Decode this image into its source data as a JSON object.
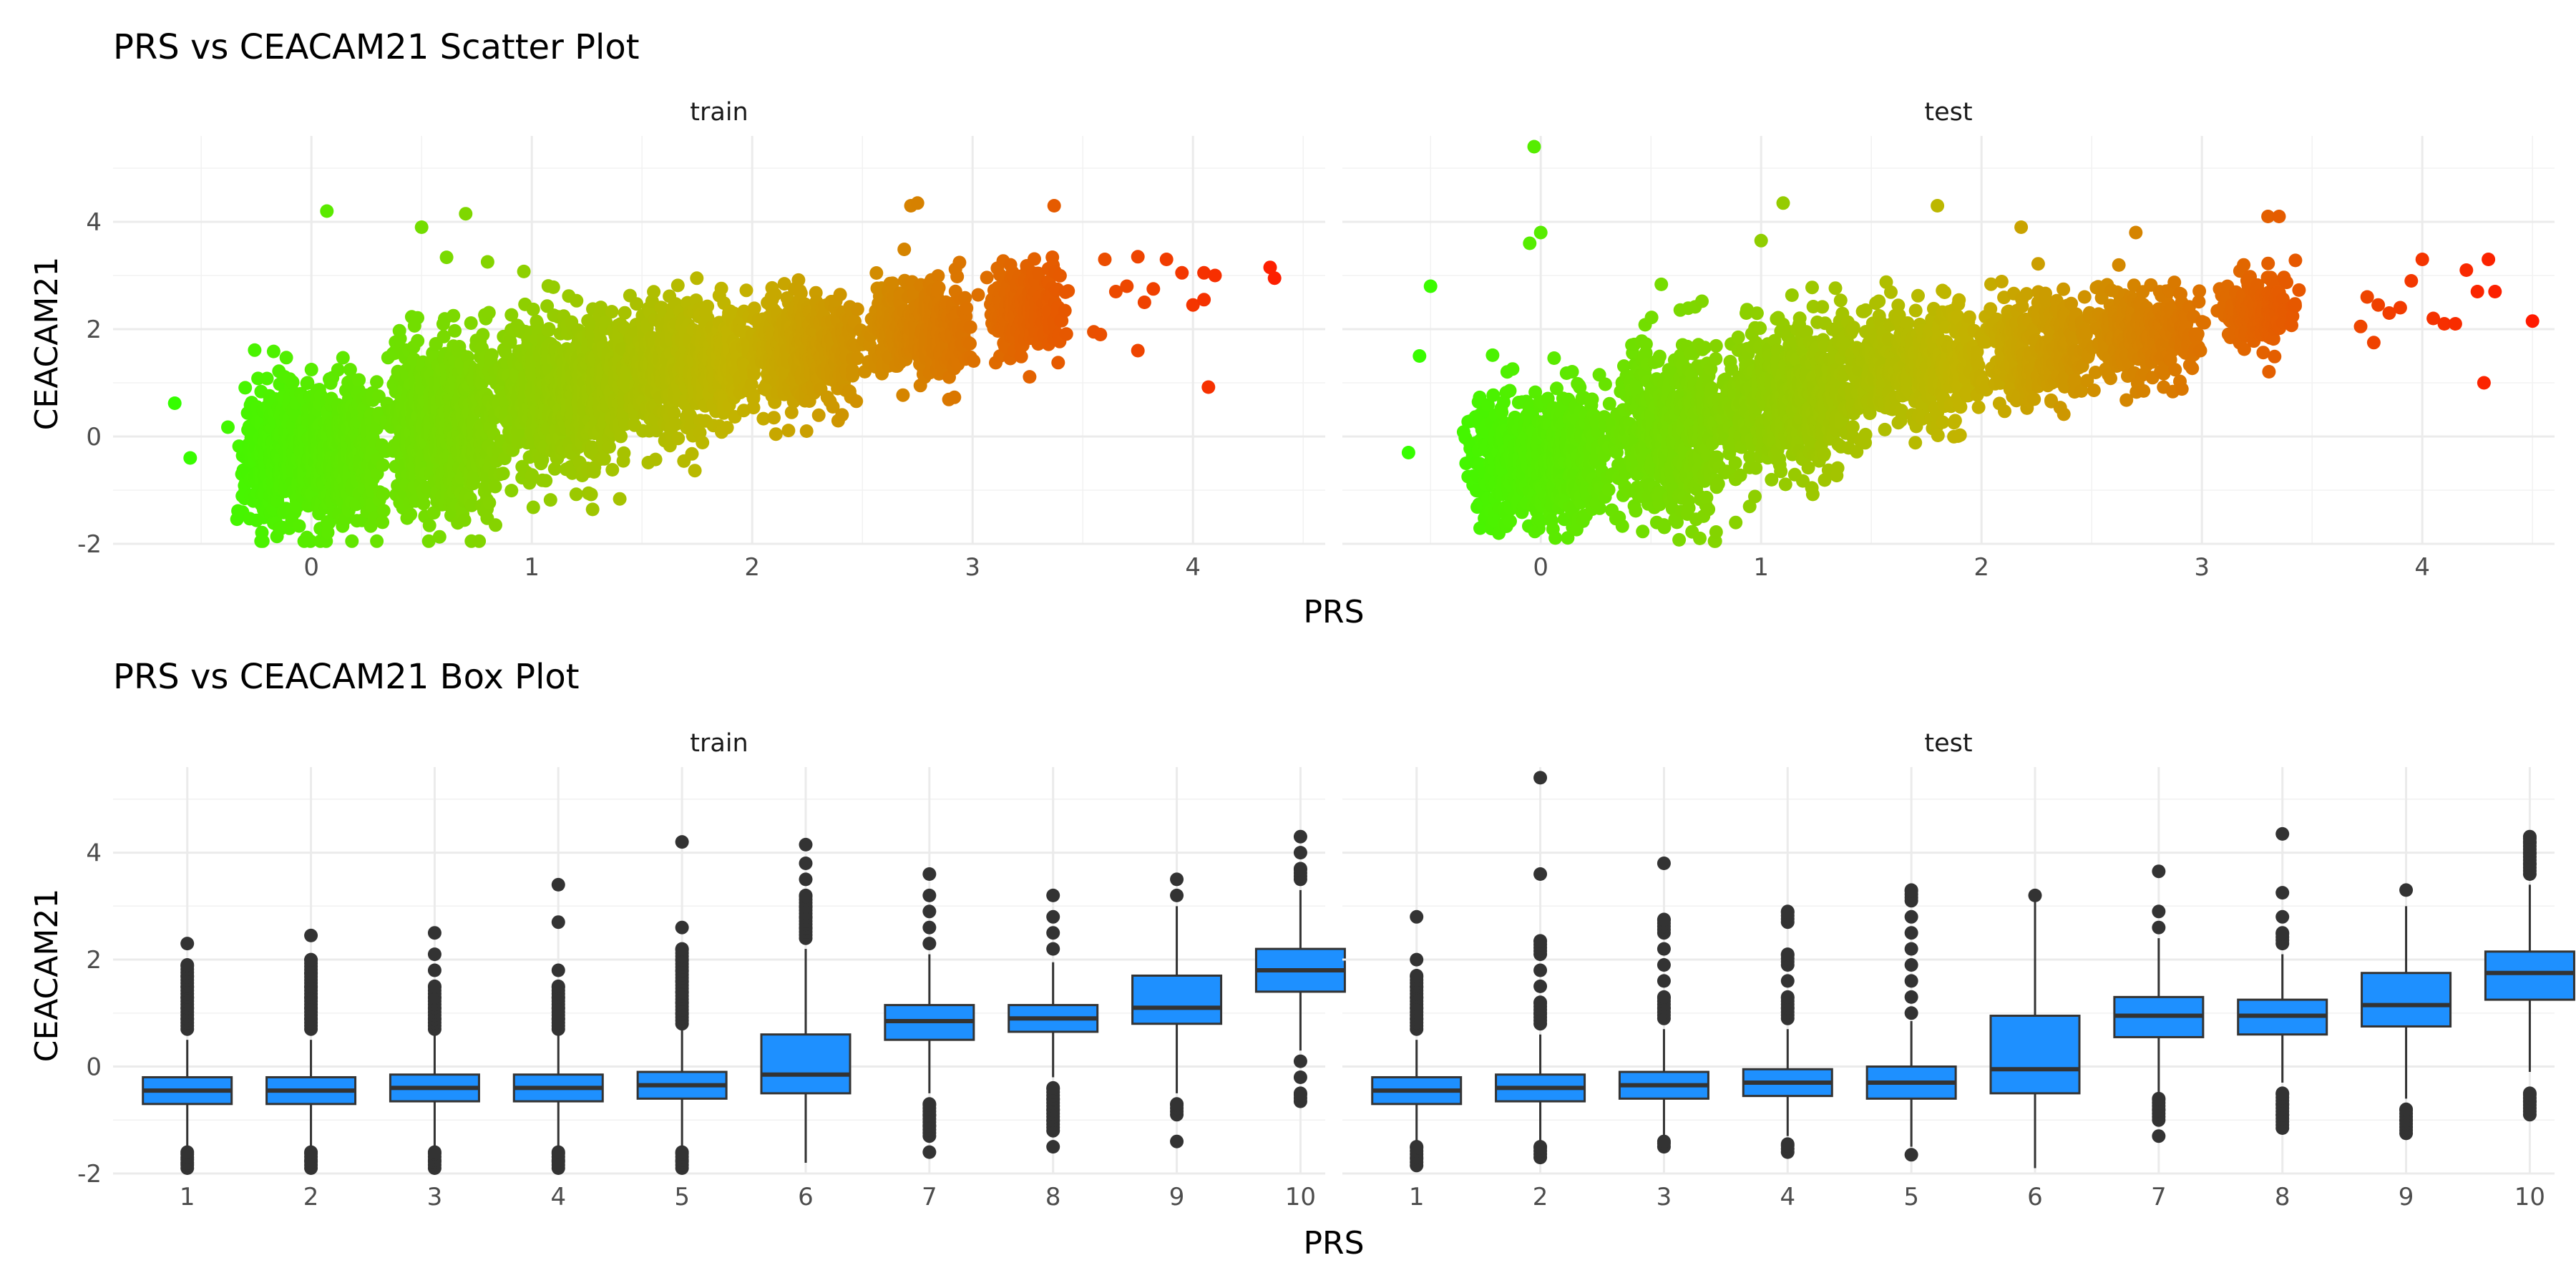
{
  "figure": {
    "scatter_title": "PRS vs CEACAM21 Scatter Plot",
    "box_title": "PRS vs CEACAM21 Box Plot",
    "scatter_xlabel": "PRS",
    "box_xlabel": "PRS",
    "ylabel": "CEACAM21"
  },
  "colors": {
    "low": "#33ff00",
    "mid": "#c2b400",
    "high": "#ff1a00",
    "box_fill": "#1e90ff",
    "box_line": "#333333",
    "outlier": "#333333"
  },
  "chart_data": [
    {
      "type": "scatter",
      "title": "PRS vs CEACAM21 Scatter Plot",
      "xlabel": "PRS",
      "ylabel": "CEACAM21",
      "color_by": "PRS",
      "grid": true,
      "panels": [
        {
          "name": "train",
          "xlim": [
            -0.9,
            4.6
          ],
          "ylim": [
            -2.0,
            5.6
          ],
          "xticks": [
            0,
            1,
            2,
            3,
            4
          ],
          "yticks": [
            -2,
            0,
            2,
            4
          ],
          "clusters": [
            {
              "x_center": 0.0,
              "x_spread": 0.28,
              "y_mean": -0.35,
              "y_sd": 0.65,
              "n": 900
            },
            {
              "x_center": 0.6,
              "x_spread": 0.22,
              "y_mean": 0.2,
              "y_sd": 0.8,
              "n": 800
            },
            {
              "x_center": 1.15,
              "x_spread": 0.25,
              "y_mean": 0.8,
              "y_sd": 0.7,
              "n": 800
            },
            {
              "x_center": 1.7,
              "x_spread": 0.25,
              "y_mean": 1.35,
              "y_sd": 0.55,
              "n": 650
            },
            {
              "x_center": 2.25,
              "x_spread": 0.2,
              "y_mean": 1.65,
              "y_sd": 0.5,
              "n": 500
            },
            {
              "x_center": 2.75,
              "x_spread": 0.2,
              "y_mean": 2.0,
              "y_sd": 0.45,
              "n": 420
            },
            {
              "x_center": 3.25,
              "x_spread": 0.12,
              "y_mean": 2.35,
              "y_sd": 0.35,
              "n": 300
            }
          ],
          "extra_points": [
            [
              0.07,
              4.2
            ],
            [
              0.7,
              4.15
            ],
            [
              0.5,
              3.9
            ],
            [
              2.75,
              4.35
            ],
            [
              2.72,
              4.3
            ],
            [
              3.37,
              4.3
            ],
            [
              3.6,
              3.3
            ],
            [
              3.75,
              3.35
            ],
            [
              3.88,
              3.3
            ],
            [
              3.95,
              3.05
            ],
            [
              4.05,
              3.05
            ],
            [
              4.1,
              3.0
            ],
            [
              3.7,
              2.8
            ],
            [
              3.65,
              2.7
            ],
            [
              3.82,
              2.75
            ],
            [
              3.78,
              2.5
            ],
            [
              4.0,
              2.45
            ],
            [
              4.05,
              2.55
            ],
            [
              3.55,
              1.95
            ],
            [
              3.58,
              1.9
            ],
            [
              3.75,
              1.6
            ],
            [
              4.07,
              0.92
            ],
            [
              4.35,
              3.15
            ],
            [
              4.37,
              2.95
            ],
            [
              -0.62,
              0.62
            ],
            [
              -0.55,
              -0.4
            ]
          ]
        },
        {
          "name": "test",
          "xlim": [
            -0.9,
            4.6
          ],
          "ylim": [
            -2.0,
            5.6
          ],
          "xticks": [
            0,
            1,
            2,
            3,
            4
          ],
          "yticks": [
            -2,
            0,
            2,
            4
          ],
          "clusters": [
            {
              "x_center": 0.0,
              "x_spread": 0.28,
              "y_mean": -0.4,
              "y_sd": 0.6,
              "n": 650
            },
            {
              "x_center": 0.6,
              "x_spread": 0.22,
              "y_mean": 0.15,
              "y_sd": 0.8,
              "n": 600
            },
            {
              "x_center": 1.15,
              "x_spread": 0.25,
              "y_mean": 0.8,
              "y_sd": 0.7,
              "n": 600
            },
            {
              "x_center": 1.7,
              "x_spread": 0.25,
              "y_mean": 1.35,
              "y_sd": 0.55,
              "n": 480
            },
            {
              "x_center": 2.25,
              "x_spread": 0.2,
              "y_mean": 1.65,
              "y_sd": 0.5,
              "n": 360
            },
            {
              "x_center": 2.75,
              "x_spread": 0.2,
              "y_mean": 1.95,
              "y_sd": 0.45,
              "n": 300
            },
            {
              "x_center": 3.25,
              "x_spread": 0.12,
              "y_mean": 2.3,
              "y_sd": 0.35,
              "n": 200
            }
          ],
          "extra_points": [
            [
              -0.03,
              5.4
            ],
            [
              -0.05,
              3.6
            ],
            [
              0.0,
              3.8
            ],
            [
              1.0,
              3.65
            ],
            [
              1.1,
              4.35
            ],
            [
              1.8,
              4.3
            ],
            [
              2.18,
              3.9
            ],
            [
              2.7,
              3.8
            ],
            [
              3.3,
              4.1
            ],
            [
              3.35,
              4.1
            ],
            [
              3.75,
              2.6
            ],
            [
              3.8,
              2.45
            ],
            [
              3.85,
              2.3
            ],
            [
              3.9,
              2.4
            ],
            [
              3.95,
              2.9
            ],
            [
              4.0,
              3.3
            ],
            [
              4.05,
              2.2
            ],
            [
              4.1,
              2.1
            ],
            [
              3.72,
              2.05
            ],
            [
              3.78,
              1.75
            ],
            [
              4.15,
              2.1
            ],
            [
              4.2,
              3.1
            ],
            [
              4.25,
              2.7
            ],
            [
              4.3,
              3.3
            ],
            [
              4.33,
              2.7
            ],
            [
              4.28,
              1.0
            ],
            [
              4.5,
              2.15
            ],
            [
              -0.5,
              2.8
            ],
            [
              -0.55,
              1.5
            ],
            [
              -0.6,
              -0.3
            ]
          ]
        }
      ]
    },
    {
      "type": "box",
      "title": "PRS vs CEACAM21 Box Plot",
      "xlabel": "PRS",
      "ylabel": "CEACAM21",
      "categories": [
        "1",
        "2",
        "3",
        "4",
        "5",
        "6",
        "7",
        "8",
        "9",
        "10"
      ],
      "grid": true,
      "panels": [
        {
          "name": "train",
          "ylim": [
            -2.0,
            5.6
          ],
          "yticks": [
            -2,
            0,
            2,
            4
          ],
          "boxes": [
            {
              "q1": -0.7,
              "median": -0.45,
              "q3": -0.2,
              "whisker_low": -1.5,
              "whisker_high": 0.5,
              "outliers": [
                -1.6,
                -1.7,
                -1.8,
                -1.9,
                0.7,
                0.9,
                1.1,
                1.3,
                1.5,
                1.7,
                1.9,
                2.3
              ]
            },
            {
              "q1": -0.7,
              "median": -0.45,
              "q3": -0.2,
              "whisker_low": -1.5,
              "whisker_high": 0.5,
              "outliers": [
                -1.6,
                -1.75,
                -1.9,
                0.7,
                0.9,
                1.1,
                1.3,
                1.5,
                1.75,
                2.0,
                2.45
              ]
            },
            {
              "q1": -0.65,
              "median": -0.4,
              "q3": -0.15,
              "whisker_low": -1.5,
              "whisker_high": 0.6,
              "outliers": [
                -1.6,
                -1.75,
                -1.9,
                0.7,
                0.9,
                1.1,
                1.3,
                1.5,
                1.8,
                2.1,
                2.5
              ]
            },
            {
              "q1": -0.65,
              "median": -0.4,
              "q3": -0.15,
              "whisker_low": -1.5,
              "whisker_high": 0.6,
              "outliers": [
                -1.6,
                -1.75,
                -1.9,
                0.7,
                0.9,
                1.1,
                1.3,
                1.5,
                1.8,
                2.7,
                3.4
              ]
            },
            {
              "q1": -0.6,
              "median": -0.35,
              "q3": -0.1,
              "whisker_low": -1.5,
              "whisker_high": 0.7,
              "outliers": [
                -1.6,
                -1.75,
                -1.9,
                0.8,
                1.0,
                1.2,
                1.4,
                1.6,
                1.8,
                2.0,
                2.2,
                2.6,
                4.2
              ]
            },
            {
              "q1": -0.5,
              "median": -0.15,
              "q3": 0.6,
              "whisker_low": -1.8,
              "whisker_high": 2.2,
              "outliers": [
                2.4,
                2.6,
                2.8,
                3.0,
                3.2,
                3.5,
                3.8,
                4.15
              ]
            },
            {
              "q1": 0.5,
              "median": 0.85,
              "q3": 1.15,
              "whisker_low": -0.5,
              "whisker_high": 2.1,
              "outliers": [
                -0.7,
                -0.9,
                -1.1,
                -1.3,
                -1.6,
                2.3,
                2.6,
                2.9,
                3.2,
                3.6
              ]
            },
            {
              "q1": 0.65,
              "median": 0.9,
              "q3": 1.15,
              "whisker_low": -0.2,
              "whisker_high": 1.95,
              "outliers": [
                -0.4,
                -0.6,
                -0.8,
                -1.0,
                -1.2,
                -1.5,
                2.2,
                2.5,
                2.8,
                3.2
              ]
            },
            {
              "q1": 0.8,
              "median": 1.1,
              "q3": 1.7,
              "whisker_low": -0.5,
              "whisker_high": 3.0,
              "outliers": [
                -0.7,
                -0.9,
                -1.4,
                3.2,
                3.5
              ]
            },
            {
              "q1": 1.4,
              "median": 1.8,
              "q3": 2.2,
              "whisker_low": 0.3,
              "whisker_high": 3.3,
              "outliers": [
                0.1,
                -0.2,
                -0.5,
                -0.65,
                3.5,
                3.7,
                4.0,
                4.3
              ]
            }
          ]
        },
        {
          "name": "test",
          "ylim": [
            -2.0,
            5.6
          ],
          "yticks": [
            -2,
            0,
            2,
            4
          ],
          "boxes": [
            {
              "q1": -0.7,
              "median": -0.45,
              "q3": -0.2,
              "whisker_low": -1.4,
              "whisker_high": 0.5,
              "outliers": [
                -1.5,
                -1.7,
                -1.85,
                0.7,
                0.9,
                1.1,
                1.3,
                1.5,
                1.7,
                2.0,
                2.8
              ]
            },
            {
              "q1": -0.65,
              "median": -0.4,
              "q3": -0.15,
              "whisker_low": -1.4,
              "whisker_high": 0.6,
              "outliers": [
                -1.5,
                -1.7,
                0.8,
                1.0,
                1.2,
                1.5,
                1.8,
                2.1,
                2.35,
                3.6,
                5.4
              ]
            },
            {
              "q1": -0.6,
              "median": -0.35,
              "q3": -0.1,
              "whisker_low": -1.3,
              "whisker_high": 0.7,
              "outliers": [
                -1.4,
                -1.5,
                0.9,
                1.1,
                1.3,
                1.6,
                1.9,
                2.2,
                2.5,
                2.75,
                3.8
              ]
            },
            {
              "q1": -0.55,
              "median": -0.3,
              "q3": -0.05,
              "whisker_low": -1.3,
              "whisker_high": 0.7,
              "outliers": [
                -1.45,
                -1.6,
                0.9,
                1.1,
                1.3,
                1.6,
                1.9,
                2.1,
                2.7,
                2.9
              ]
            },
            {
              "q1": -0.6,
              "median": -0.3,
              "q3": 0.0,
              "whisker_low": -1.5,
              "whisker_high": 0.85,
              "outliers": [
                -1.65,
                1.0,
                1.3,
                1.6,
                1.9,
                2.2,
                2.5,
                2.8,
                3.1,
                3.3
              ]
            },
            {
              "q1": -0.5,
              "median": -0.05,
              "q3": 0.95,
              "whisker_low": -1.9,
              "whisker_high": 3.1,
              "outliers": [
                3.2
              ]
            },
            {
              "q1": 0.55,
              "median": 0.95,
              "q3": 1.3,
              "whisker_low": -0.5,
              "whisker_high": 2.4,
              "outliers": [
                -0.6,
                -0.8,
                -1.0,
                -1.3,
                2.6,
                2.9,
                3.65
              ]
            },
            {
              "q1": 0.6,
              "median": 0.95,
              "q3": 1.25,
              "whisker_low": -0.3,
              "whisker_high": 2.1,
              "outliers": [
                -0.5,
                -0.7,
                -0.9,
                -1.15,
                2.3,
                2.5,
                2.8,
                3.25,
                4.35
              ]
            },
            {
              "q1": 0.75,
              "median": 1.15,
              "q3": 1.75,
              "whisker_low": -0.6,
              "whisker_high": 3.0,
              "outliers": [
                -0.8,
                -1.0,
                -1.25,
                3.3
              ]
            },
            {
              "q1": 1.25,
              "median": 1.75,
              "q3": 2.15,
              "whisker_low": -0.1,
              "whisker_high": 3.4,
              "outliers": [
                -0.5,
                -0.65,
                -0.9,
                3.6,
                3.8,
                4.0,
                4.2,
                4.3
              ]
            }
          ]
        }
      ]
    }
  ]
}
